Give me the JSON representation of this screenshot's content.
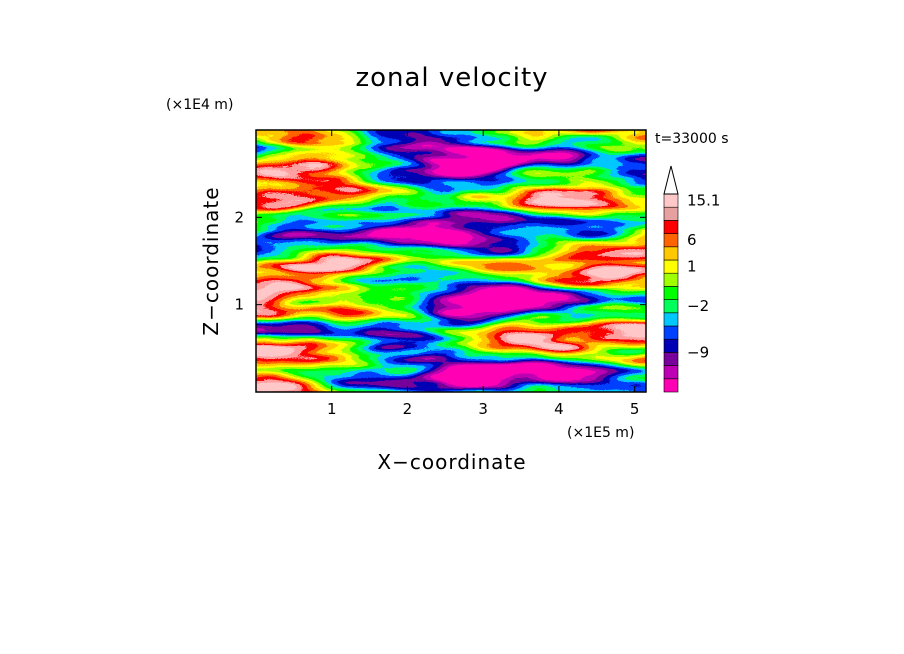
{
  "chart_data": {
    "type": "heatmap",
    "title": "zonal velocity",
    "xlabel": "X−coordinate",
    "ylabel": "Z−coordinate",
    "x_unit": "(×1E5 m)",
    "y_unit": "(×1E4 m)",
    "time_label": "t=33000 s",
    "xlim": [
      0,
      5.15
    ],
    "ylim": [
      0,
      3.0
    ],
    "x_ticks": [
      {
        "value": 1,
        "label": "1"
      },
      {
        "value": 2,
        "label": "2"
      },
      {
        "value": 3,
        "label": "3"
      },
      {
        "value": 4,
        "label": "4"
      },
      {
        "value": 5,
        "label": "5"
      }
    ],
    "y_ticks": [
      {
        "value": 1,
        "label": "1"
      },
      {
        "value": 2,
        "label": "2"
      }
    ],
    "colorbar": {
      "colors": [
        "#ff00b4",
        "#be00b4",
        "#78009b",
        "#0000b4",
        "#0040ff",
        "#00c8ff",
        "#00ff5a",
        "#00ff00",
        "#a0ff00",
        "#ffff00",
        "#ffc800",
        "#ff6400",
        "#ff0000",
        "#e6a0a0",
        "#ffc8c8"
      ],
      "labels": [
        {
          "text": "15.1",
          "level": 14.5
        },
        {
          "text": "6",
          "level": 11.5
        },
        {
          "text": "1",
          "level": 9.5
        },
        {
          "text": "−2",
          "level": 6.5
        },
        {
          "text": "−9",
          "level": 3.0
        }
      ]
    }
  }
}
